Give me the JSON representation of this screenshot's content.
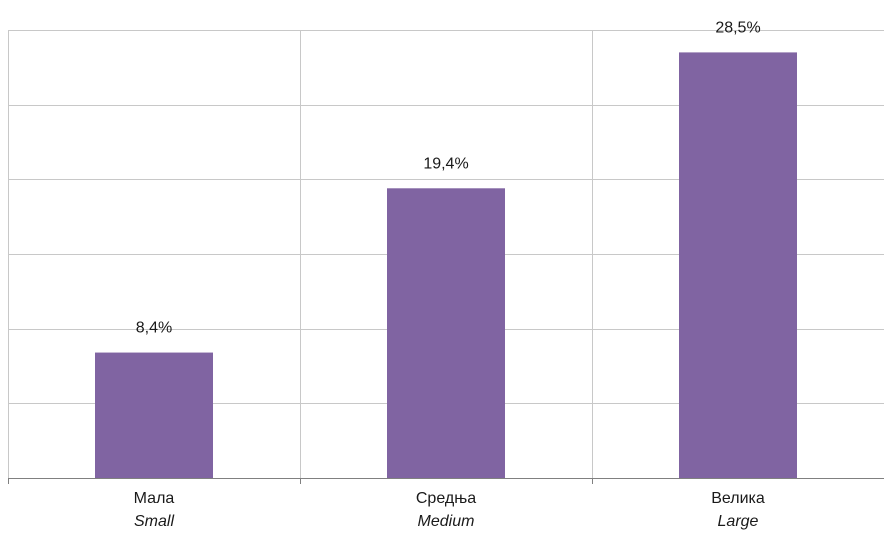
{
  "chart_data": {
    "type": "bar",
    "categories": [
      "Мала",
      "Средња",
      "Велика"
    ],
    "categories_secondary": [
      "Small",
      "Medium",
      "Large"
    ],
    "values": [
      8.4,
      19.4,
      28.5
    ],
    "data_labels": [
      "8,4%",
      "19,4%",
      "28,5%"
    ],
    "ylim": [
      0,
      30
    ],
    "y_gridline_step": 5,
    "grid": true,
    "bar_color": "#8064a2"
  }
}
